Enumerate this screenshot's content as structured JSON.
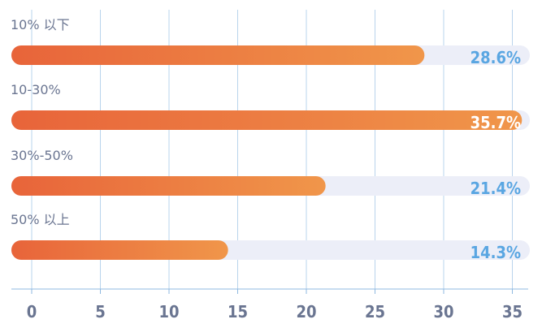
{
  "chart_data": {
    "type": "bar",
    "orientation": "horizontal",
    "categories": [
      "10% 以下",
      "10-30%",
      "30%-50%",
      "50% 以上"
    ],
    "values": [
      28.6,
      35.7,
      21.4,
      14.3
    ],
    "value_labels": [
      "28.6%",
      "35.7%",
      "21.4%",
      "14.3%"
    ],
    "x_ticks": [
      0,
      5,
      10,
      15,
      20,
      25,
      30,
      35
    ],
    "xlim": [
      0,
      35.7
    ],
    "title": "",
    "xlabel": "",
    "ylabel": "",
    "grid": "vertical",
    "legend": "none"
  },
  "colors": {
    "bar_start": "#e8643a",
    "bar_end": "#f0964a",
    "track": "#eceef8",
    "grid": "#b9d4ec",
    "axis": "#8fb9e0",
    "label_outside": "#5aa6e2",
    "label_inside": "#ffffff",
    "text": "#6a7591"
  }
}
